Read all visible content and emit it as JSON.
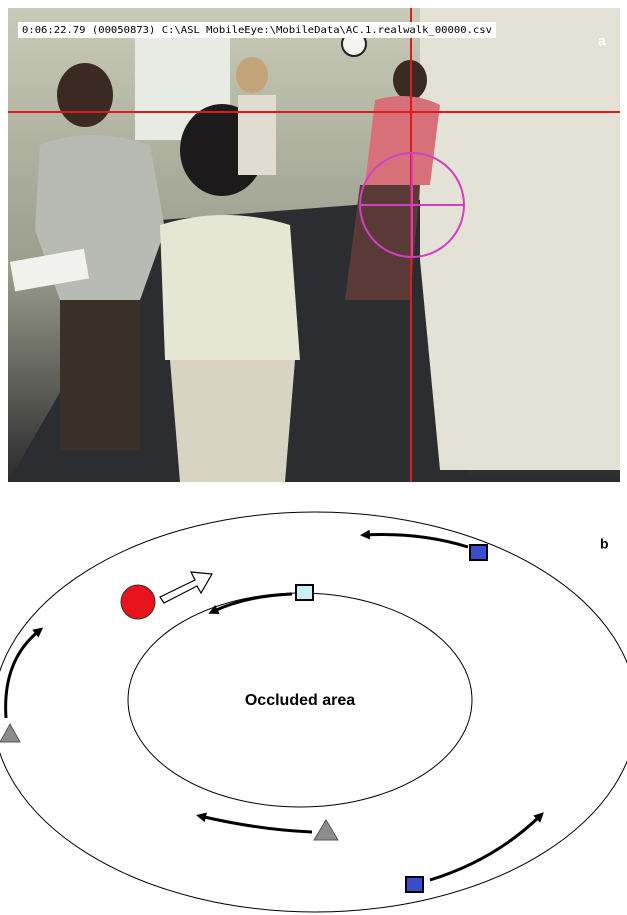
{
  "figure": {
    "panel_a": {
      "label": "a",
      "timestamp": "0:06:22.79  (00050873)  C:\\ASL MobileEye:\\MobileData\\AC.1.realwalk_00000.csv"
    },
    "panel_b": {
      "label": "b",
      "occluded_label": "Occluded area"
    }
  }
}
